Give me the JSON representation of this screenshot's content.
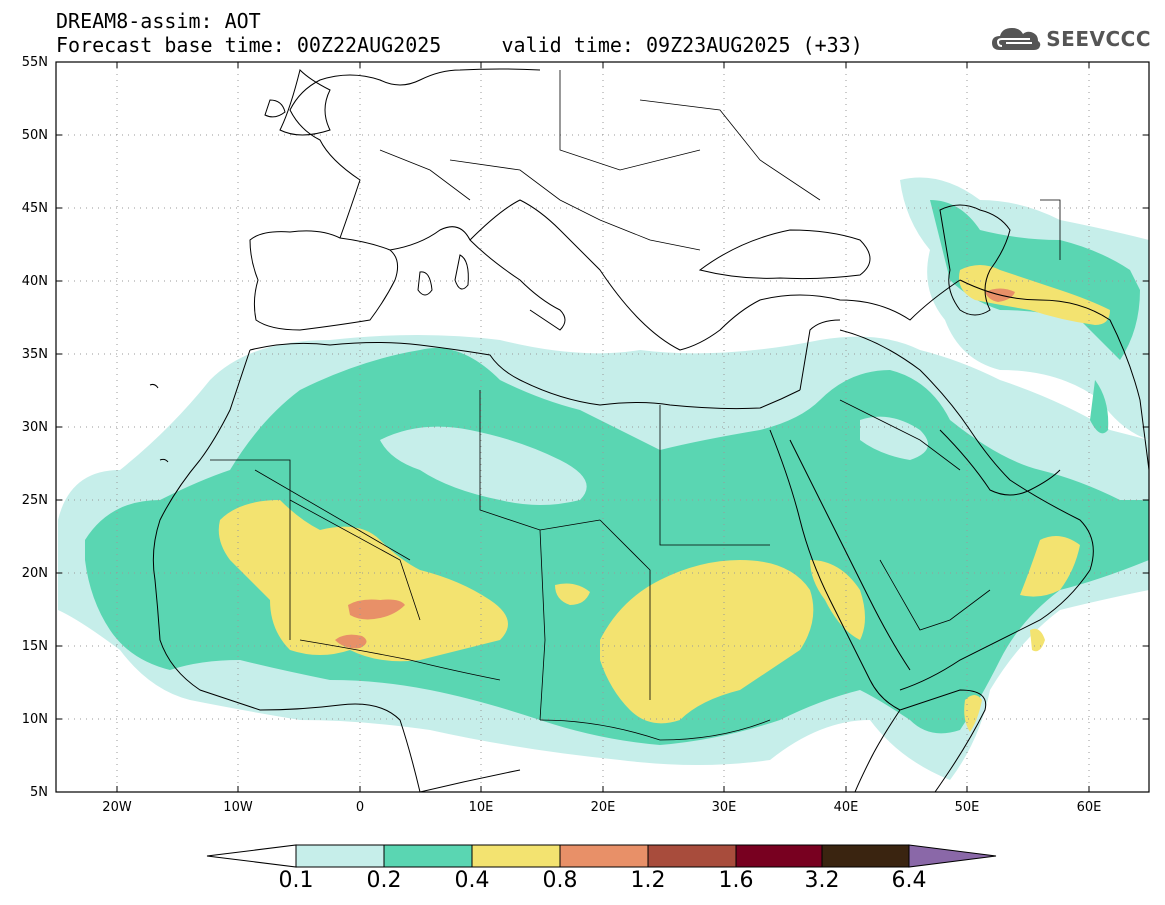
{
  "header": {
    "title_line1": "DREAM8-assim: AOT",
    "title_line2": "Forecast base time: 00Z22AUG2025     valid time: 09Z23AUG2025 (+33)"
  },
  "logo": {
    "text": "SEEVCCC",
    "icon": "cloud-icon"
  },
  "map": {
    "variable": "AOT",
    "lat_range": [
      5,
      55
    ],
    "lon_range": [
      -25,
      65
    ],
    "lat_ticks": [
      "55N",
      "50N",
      "45N",
      "40N",
      "35N",
      "30N",
      "25N",
      "20N",
      "15N",
      "10N",
      "5N"
    ],
    "lon_ticks": [
      "20W",
      "10W",
      "0",
      "10E",
      "20E",
      "30E",
      "40E",
      "50E",
      "60E"
    ]
  },
  "colorbar": {
    "labels": [
      "0.1",
      "0.2",
      "0.4",
      "0.8",
      "1.2",
      "1.6",
      "3.2",
      "6.4"
    ],
    "colors": [
      "#ffffff",
      "#c6eeea",
      "#5ad6b2",
      "#f3e370",
      "#e89068",
      "#a84c3c",
      "#780020",
      "#3a2410",
      "#8a68a8"
    ]
  },
  "colors": {
    "frame": "#000000",
    "coast": "#000000",
    "grid": "#9a9a9a"
  }
}
